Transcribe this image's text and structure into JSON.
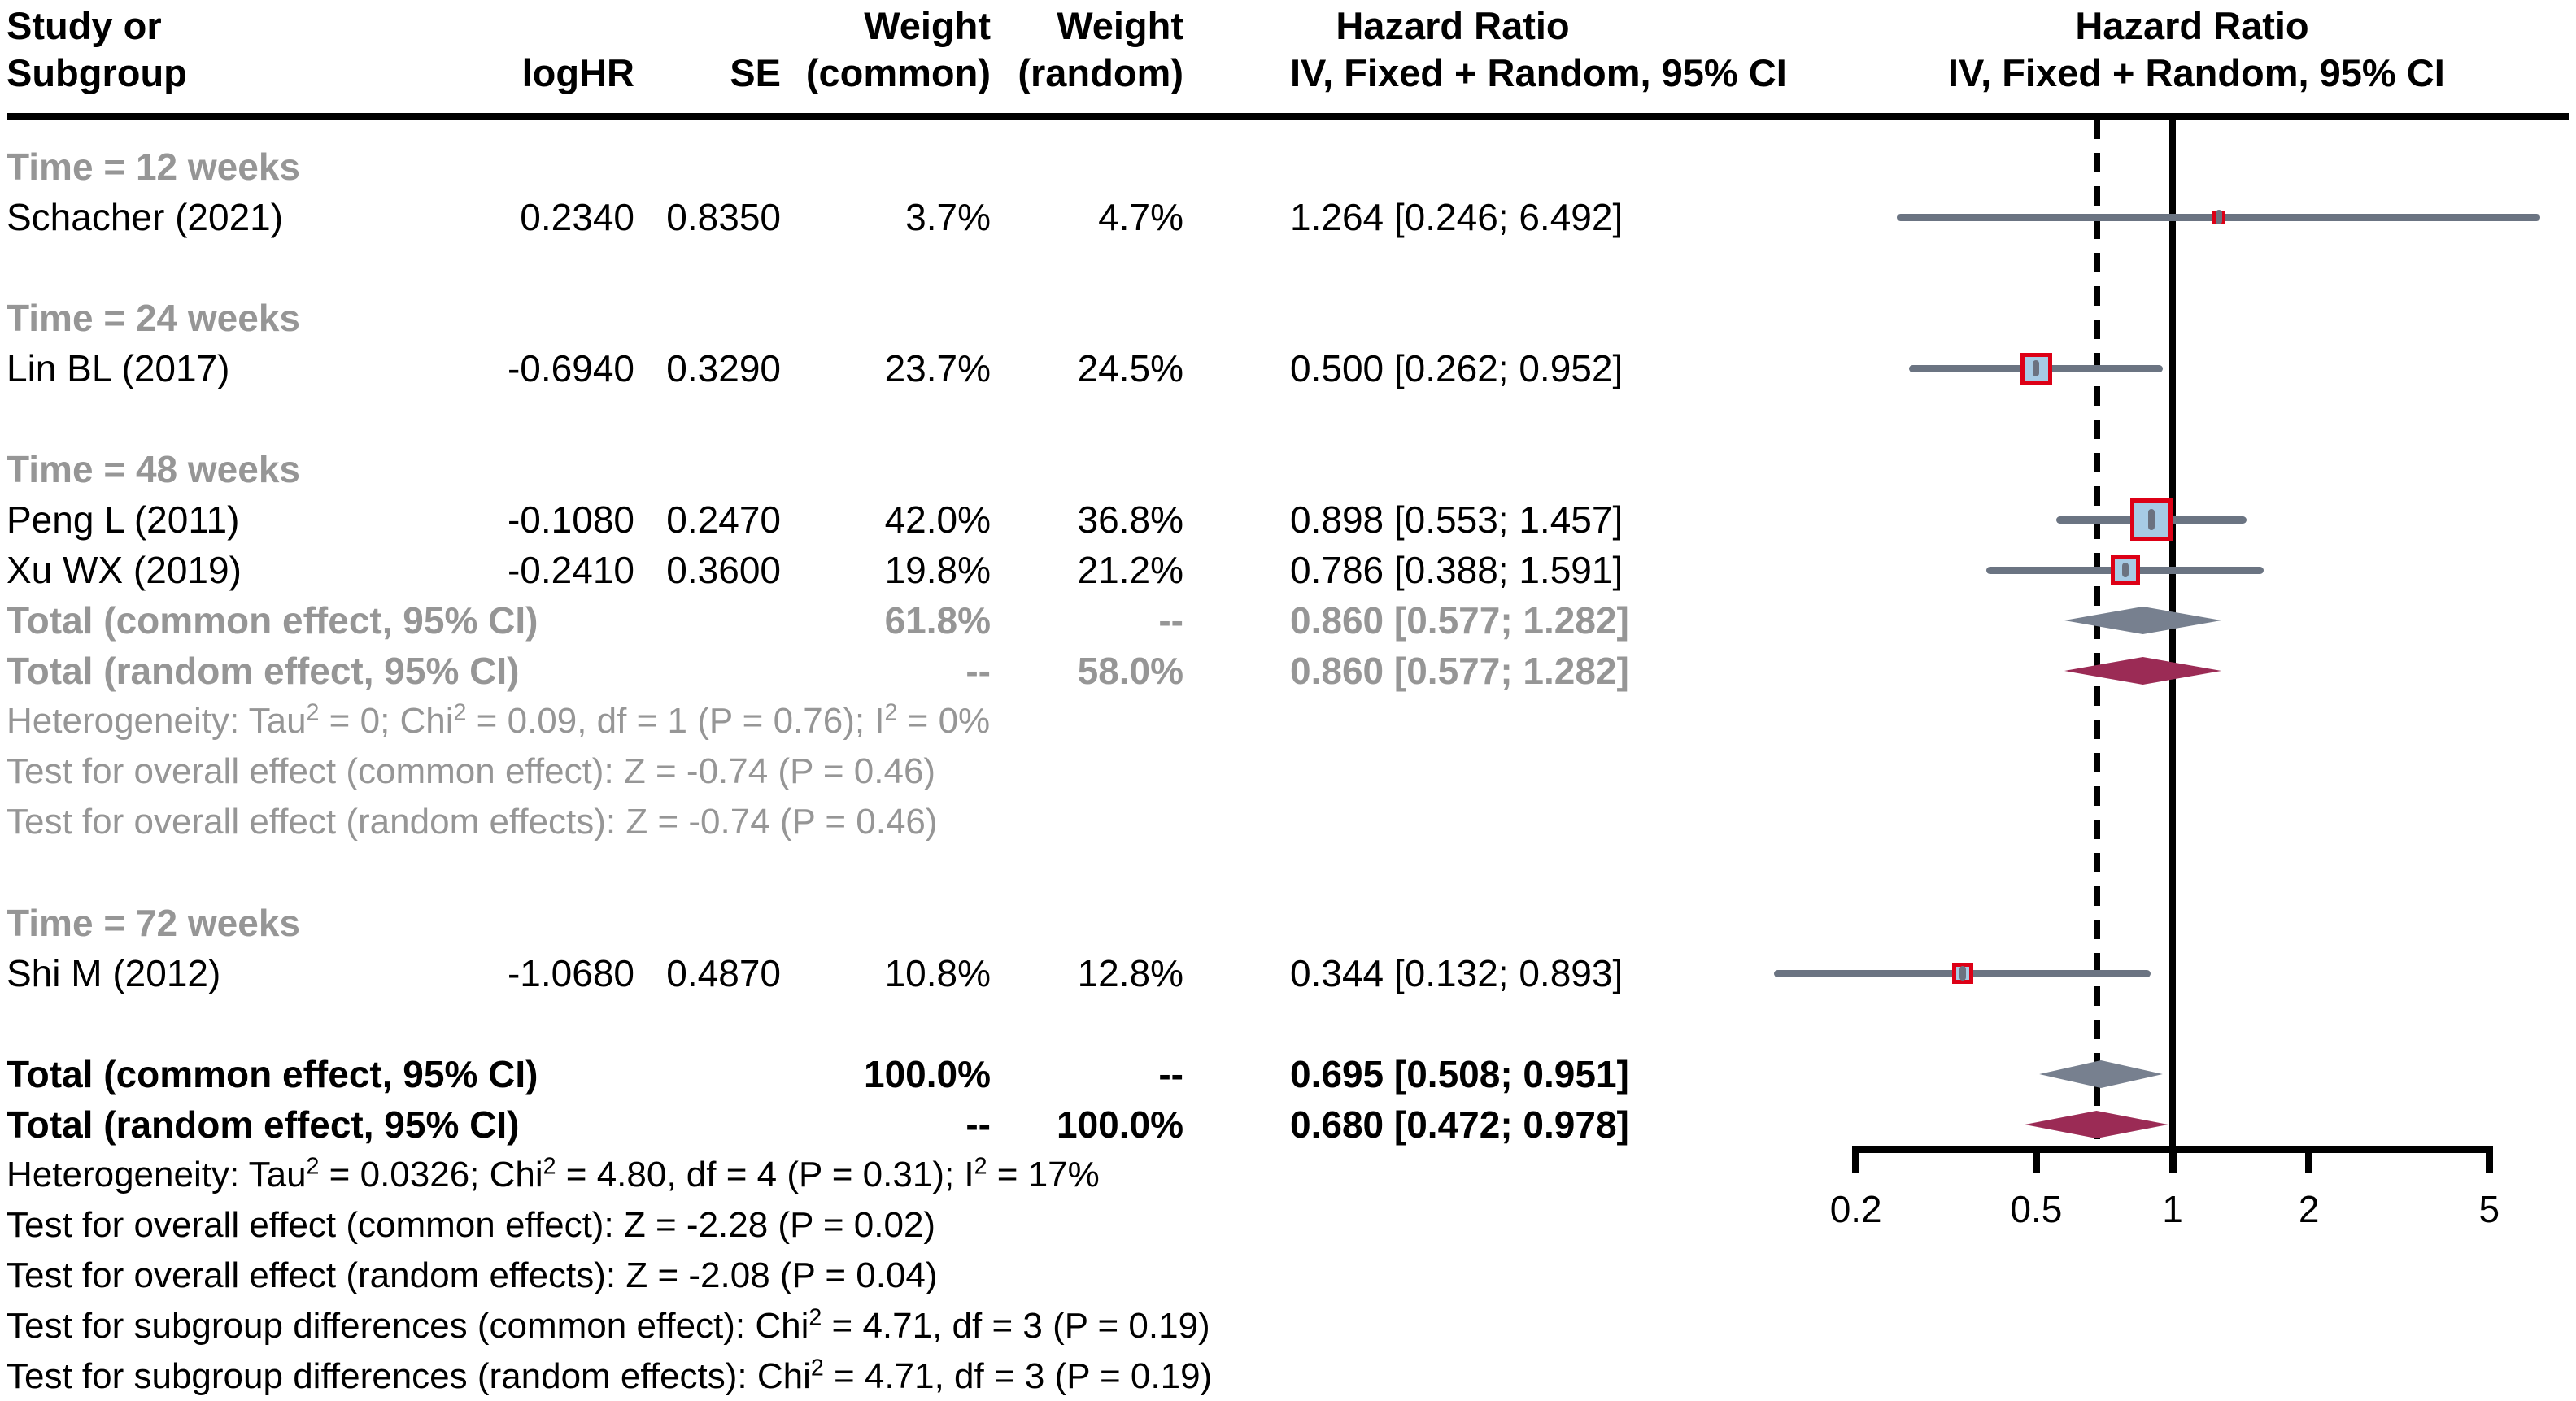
{
  "header": {
    "study": [
      "Study or",
      "Subgroup"
    ],
    "loghr": "logHR",
    "se": "SE",
    "weight_common": [
      "Weight",
      "(common)"
    ],
    "weight_random": [
      "Weight",
      "(random)"
    ],
    "hr_text_col": [
      "Hazard Ratio",
      "IV, Fixed + Random, 95% CI"
    ],
    "hr_plot_col": [
      "Hazard Ratio",
      "IV, Fixed + Random, 95% CI"
    ]
  },
  "colors": {
    "text_black": "#000000",
    "text_gray": "#969696",
    "ci_line": "#6b7482",
    "marker_fill": "#a7cbe5",
    "marker_border": "#dd0016",
    "marker_tick": "#6b7280",
    "diamond_common": "#77808f",
    "diamond_random": "#9b2b55",
    "ref_line": "#000000"
  },
  "axis": {
    "scale": "log",
    "tick_labels": [
      "0.2",
      "0.5",
      "1",
      "2",
      "5"
    ],
    "tick_values": [
      0.2,
      0.5,
      1,
      2,
      5
    ],
    "ref_solid": 1,
    "ref_dashed": 0.68
  },
  "rows": [
    {
      "slot": 0,
      "type": "subgroup",
      "label": "Time = 12 weeks"
    },
    {
      "slot": 1,
      "type": "study",
      "label": "Schacher (2021)",
      "loghr": "0.2340",
      "se": "0.8350",
      "wc": "3.7%",
      "wr": "4.7%",
      "wc_num": 3.7,
      "ci_text": "1.264 [0.246; 6.492]",
      "hr": 1.264,
      "lo": 0.246,
      "hi": 6.492
    },
    {
      "slot": 3,
      "type": "subgroup",
      "label": "Time = 24 weeks"
    },
    {
      "slot": 4,
      "type": "study",
      "label": "Lin BL (2017)",
      "loghr": "-0.6940",
      "se": "0.3290",
      "wc": "23.7%",
      "wr": "24.5%",
      "wc_num": 23.7,
      "ci_text": "0.500 [0.262; 0.952]",
      "hr": 0.5,
      "lo": 0.262,
      "hi": 0.952
    },
    {
      "slot": 6,
      "type": "subgroup",
      "label": "Time = 48 weeks"
    },
    {
      "slot": 7,
      "type": "study",
      "label": "Peng L (2011)",
      "loghr": "-0.1080",
      "se": "0.2470",
      "wc": "42.0%",
      "wr": "36.8%",
      "wc_num": 42.0,
      "ci_text": "0.898 [0.553; 1.457]",
      "hr": 0.898,
      "lo": 0.553,
      "hi": 1.457
    },
    {
      "slot": 8,
      "type": "study",
      "label": "Xu WX (2019)",
      "loghr": "-0.2410",
      "se": "0.3600",
      "wc": "19.8%",
      "wr": "21.2%",
      "wc_num": 19.8,
      "ci_text": "0.786 [0.388; 1.591]",
      "hr": 0.786,
      "lo": 0.388,
      "hi": 1.591
    },
    {
      "slot": 9,
      "type": "total",
      "muted": true,
      "diamond": "common",
      "label": "Total (common effect, 95% CI)",
      "wc": "61.8%",
      "wr": "--",
      "ci_text": "0.860 [0.577; 1.282]",
      "hr": 0.86,
      "lo": 0.577,
      "hi": 1.282
    },
    {
      "slot": 10,
      "type": "total",
      "muted": true,
      "diamond": "random",
      "label": "Total (random effect, 95% CI)",
      "wc": "--",
      "wr": "58.0%",
      "ci_text": "0.860 [0.577; 1.282]",
      "hr": 0.86,
      "lo": 0.577,
      "hi": 1.282
    },
    {
      "slot": 11,
      "type": "stat",
      "muted": true,
      "label": "Heterogeneity: Tau^2 = 0; Chi^2 = 0.09, df = 1 (P = 0.76); I^2 = 0%"
    },
    {
      "slot": 12,
      "type": "stat",
      "muted": true,
      "label": "Test for overall effect (common effect): Z = -0.74 (P = 0.46)"
    },
    {
      "slot": 13,
      "type": "stat",
      "muted": true,
      "label": "Test for overall effect (random effects): Z = -0.74 (P = 0.46)"
    },
    {
      "slot": 15,
      "type": "subgroup",
      "label": "Time = 72 weeks"
    },
    {
      "slot": 16,
      "type": "study",
      "label": "Shi M (2012)",
      "loghr": "-1.0680",
      "se": "0.4870",
      "wc": "10.8%",
      "wr": "12.8%",
      "wc_num": 10.8,
      "ci_text": "0.344 [0.132; 0.893]",
      "hr": 0.344,
      "lo": 0.132,
      "hi": 0.893
    },
    {
      "slot": 18,
      "type": "total",
      "muted": false,
      "diamond": "common",
      "label": "Total (common effect, 95% CI)",
      "wc": "100.0%",
      "wr": "--",
      "ci_text": "0.695 [0.508; 0.951]",
      "hr": 0.695,
      "lo": 0.508,
      "hi": 0.951
    },
    {
      "slot": 19,
      "type": "total",
      "muted": false,
      "diamond": "random",
      "label": "Total (random effect, 95% CI)",
      "wc": "--",
      "wr": "100.0%",
      "ci_text": "0.680 [0.472; 0.978]",
      "hr": 0.68,
      "lo": 0.472,
      "hi": 0.978
    },
    {
      "slot": 20,
      "type": "stat",
      "muted": false,
      "label": "Heterogeneity: Tau^2 = 0.0326; Chi^2 = 4.80, df = 4 (P = 0.31); I^2 = 17%"
    },
    {
      "slot": 21,
      "type": "stat",
      "muted": false,
      "label": "Test for overall effect (common effect): Z = -2.28 (P = 0.02)"
    },
    {
      "slot": 22,
      "type": "stat",
      "muted": false,
      "label": "Test for overall effect (random effects): Z = -2.08 (P = 0.04)"
    },
    {
      "slot": 23,
      "type": "stat",
      "muted": false,
      "label": "Test for subgroup differences (common effect): Chi^2 = 4.71, df = 3 (P = 0.19)"
    },
    {
      "slot": 24,
      "type": "stat",
      "muted": false,
      "label": "Test for subgroup differences (random effects): Chi^2 = 4.71, df = 3 (P = 0.19)"
    }
  ],
  "chart_data": {
    "type": "forest",
    "title": "",
    "xlabel": "Hazard Ratio",
    "x_scale": "log",
    "x_ticks": [
      0.2,
      0.5,
      1,
      2,
      5
    ],
    "xlim": [
      0.2,
      5
    ],
    "reference_line": 1,
    "dashed_line_at": 0.68,
    "effect_measure": "Hazard Ratio, IV, Fixed + Random, 95% CI",
    "subgroups": [
      {
        "name": "Time = 12 weeks",
        "studies": [
          {
            "study": "Schacher (2021)",
            "logHR": 0.234,
            "SE": 0.835,
            "weight_common_pct": 3.7,
            "weight_random_pct": 4.7,
            "hr": 1.264,
            "ci_low": 0.246,
            "ci_high": 6.492
          }
        ]
      },
      {
        "name": "Time = 24 weeks",
        "studies": [
          {
            "study": "Lin BL (2017)",
            "logHR": -0.694,
            "SE": 0.329,
            "weight_common_pct": 23.7,
            "weight_random_pct": 24.5,
            "hr": 0.5,
            "ci_low": 0.262,
            "ci_high": 0.952
          }
        ]
      },
      {
        "name": "Time = 48 weeks",
        "studies": [
          {
            "study": "Peng L (2011)",
            "logHR": -0.108,
            "SE": 0.247,
            "weight_common_pct": 42.0,
            "weight_random_pct": 36.8,
            "hr": 0.898,
            "ci_low": 0.553,
            "ci_high": 1.457
          },
          {
            "study": "Xu WX (2019)",
            "logHR": -0.241,
            "SE": 0.36,
            "weight_common_pct": 19.8,
            "weight_random_pct": 21.2,
            "hr": 0.786,
            "ci_low": 0.388,
            "ci_high": 1.591
          }
        ],
        "total_common": {
          "hr": 0.86,
          "ci_low": 0.577,
          "ci_high": 1.282,
          "weight_common_pct": 61.8
        },
        "total_random": {
          "hr": 0.86,
          "ci_low": 0.577,
          "ci_high": 1.282,
          "weight_random_pct": 58.0
        },
        "heterogeneity": "Tau2 = 0; Chi2 = 0.09, df = 1 (P = 0.76); I2 = 0%",
        "test_common": "Z = -0.74 (P = 0.46)",
        "test_random": "Z = -0.74 (P = 0.46)"
      },
      {
        "name": "Time = 72 weeks",
        "studies": [
          {
            "study": "Shi M (2012)",
            "logHR": -1.068,
            "SE": 0.487,
            "weight_common_pct": 10.8,
            "weight_random_pct": 12.8,
            "hr": 0.344,
            "ci_low": 0.132,
            "ci_high": 0.893
          }
        ]
      }
    ],
    "overall_common": {
      "hr": 0.695,
      "ci_low": 0.508,
      "ci_high": 0.951,
      "weight_common_pct": 100.0
    },
    "overall_random": {
      "hr": 0.68,
      "ci_low": 0.472,
      "ci_high": 0.978,
      "weight_random_pct": 100.0
    },
    "overall_heterogeneity": "Tau2 = 0.0326; Chi2 = 4.80, df = 4 (P = 0.31); I2 = 17%",
    "overall_test_common": "Z = -2.28 (P = 0.02)",
    "overall_test_random": "Z = -2.08 (P = 0.04)",
    "subgroup_diff_common": "Chi2 = 4.71, df = 3 (P = 0.19)",
    "subgroup_diff_random": "Chi2 = 4.71, df = 3 (P = 0.19)"
  }
}
